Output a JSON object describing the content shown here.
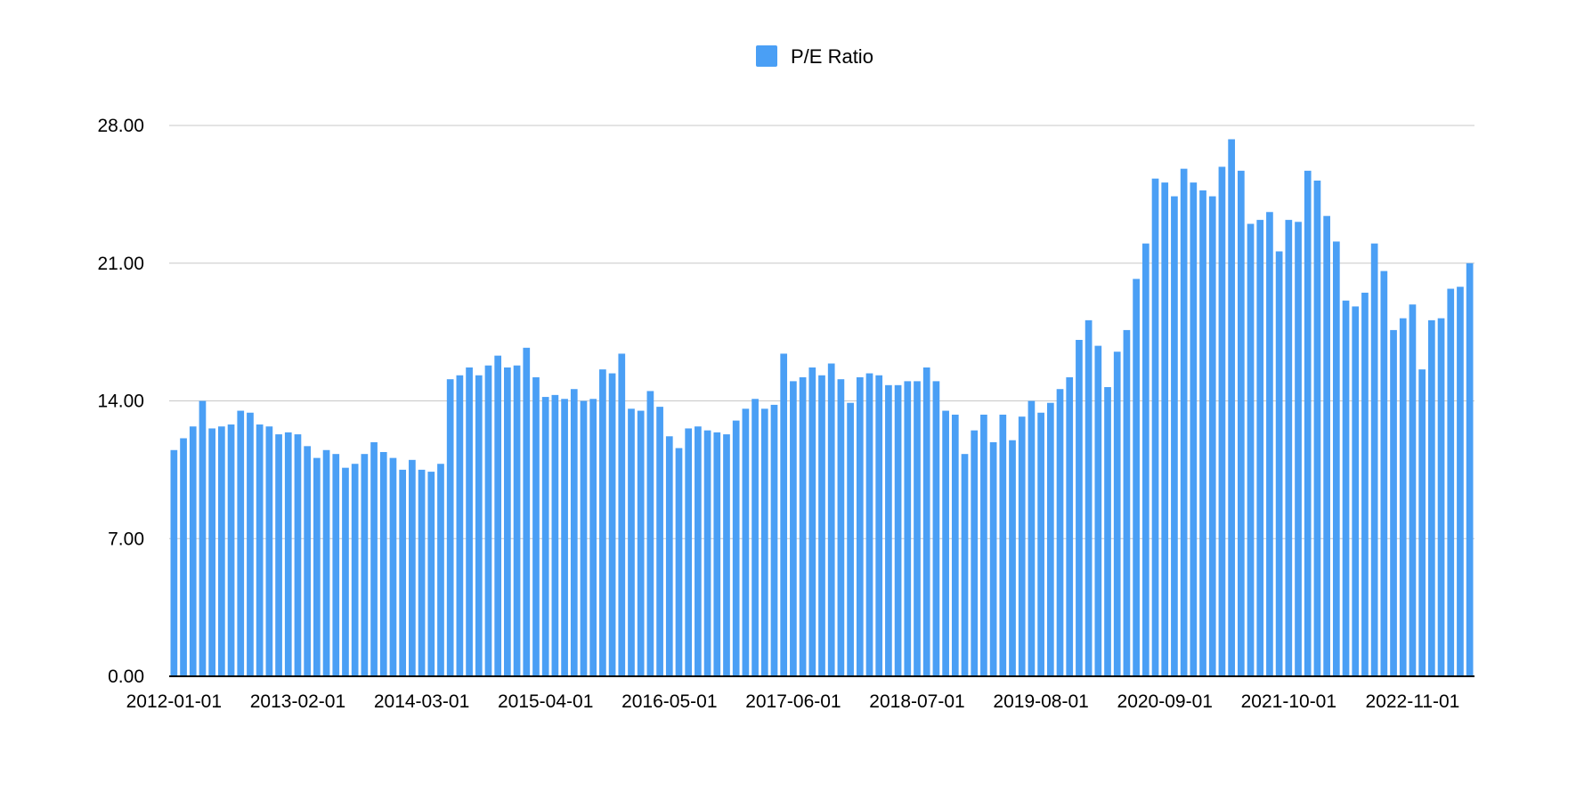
{
  "chart_data": {
    "type": "bar",
    "title": "",
    "xlabel": "",
    "ylabel": "",
    "legend": {
      "position": "top-center",
      "entries": [
        "P/E Ratio"
      ]
    },
    "grid": true,
    "ylim": [
      0,
      28
    ],
    "yticks": [
      "0.00",
      "7.00",
      "14.00",
      "21.00",
      "28.00"
    ],
    "ytick_values": [
      0,
      7,
      14,
      21,
      28
    ],
    "xtick_labels": [
      "2012-01-01",
      "2013-02-01",
      "2014-03-01",
      "2015-04-01",
      "2016-05-01",
      "2017-06-01",
      "2018-07-01",
      "2019-08-01",
      "2020-09-01",
      "2021-10-01",
      "2022-11-01"
    ],
    "colors": {
      "bar": "#4a9ff5",
      "grid": "#c8c8c8",
      "axis": "#000000"
    },
    "series": [
      {
        "name": "P/E Ratio",
        "values": [
          11.5,
          12.1,
          12.7,
          14.0,
          12.6,
          12.7,
          12.8,
          13.5,
          13.4,
          12.8,
          12.7,
          12.3,
          12.4,
          12.3,
          11.7,
          11.1,
          11.5,
          11.3,
          10.6,
          10.8,
          11.3,
          11.9,
          11.4,
          11.1,
          10.5,
          11.0,
          10.5,
          10.4,
          10.8,
          15.1,
          15.3,
          15.7,
          15.3,
          15.8,
          16.3,
          15.7,
          15.8,
          16.7,
          15.2,
          14.2,
          14.3,
          14.1,
          14.6,
          14.0,
          14.1,
          15.6,
          15.4,
          16.4,
          13.6,
          13.5,
          14.5,
          13.7,
          12.2,
          11.6,
          12.6,
          12.7,
          12.5,
          12.4,
          12.3,
          13.0,
          13.6,
          14.1,
          13.6,
          13.8,
          16.4,
          15.0,
          15.2,
          15.7,
          15.3,
          15.9,
          15.1,
          13.9,
          15.2,
          15.4,
          15.3,
          14.8,
          14.8,
          15.0,
          15.0,
          15.7,
          15.0,
          13.5,
          13.3,
          11.3,
          12.5,
          13.3,
          11.9,
          13.3,
          12.0,
          13.2,
          14.0,
          13.4,
          13.9,
          14.6,
          15.2,
          17.1,
          18.1,
          16.8,
          14.7,
          16.5,
          17.6,
          20.2,
          22.0,
          25.3,
          25.1,
          24.4,
          25.8,
          25.1,
          24.7,
          24.4,
          25.9,
          27.3,
          25.7,
          23.0,
          23.2,
          23.6,
          21.6,
          23.2,
          23.1,
          25.7,
          25.2,
          23.4,
          22.1,
          19.1,
          18.8,
          19.5,
          22.0,
          20.6,
          17.6,
          18.2,
          18.9,
          15.6,
          18.1,
          18.2,
          19.7,
          19.8,
          21.0
        ]
      }
    ]
  }
}
